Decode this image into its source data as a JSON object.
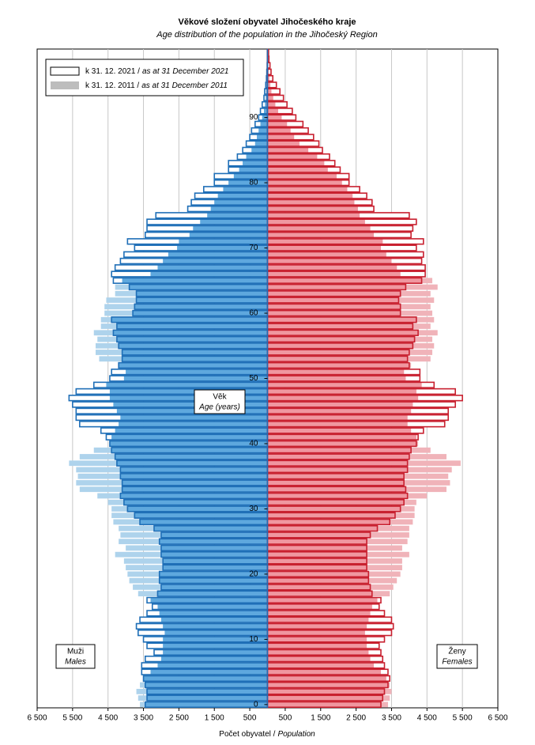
{
  "chart_data": {
    "type": "pyramid",
    "title": "Věkové složení obyvatel Jihočeského kraje",
    "subtitle": "Age distribution of the population in the Jihočeský Region",
    "x_label": "Počet obyvatel /",
    "x_label_en": "Population",
    "y_label": "Věk",
    "y_label_en": "Age (years)",
    "left_label": "Muži",
    "left_label_en": "Males",
    "right_label": "Ženy",
    "right_label_en": "Females",
    "xlim": [
      0,
      6500
    ],
    "xticks": [
      {
        "value": 500,
        "label": "500"
      },
      {
        "value": 1500,
        "label": "1 500"
      },
      {
        "value": 2500,
        "label": "2 500"
      },
      {
        "value": 3500,
        "label": "3 500"
      },
      {
        "value": 4500,
        "label": "4 500"
      },
      {
        "value": 5500,
        "label": "5 500"
      },
      {
        "value": 6500,
        "label": "6 500"
      }
    ],
    "ylim": [
      -0.5,
      100.5
    ],
    "yticks": [
      0,
      10,
      20,
      30,
      40,
      50,
      60,
      70,
      80,
      90
    ],
    "grid": true,
    "legend": "upper left",
    "male_overlap_color": "#5ea8de",
    "female_overlap_color": "#f097a0",
    "y": [
      0,
      1,
      2,
      3,
      4,
      5,
      6,
      7,
      8,
      9,
      10,
      11,
      12,
      13,
      14,
      15,
      16,
      17,
      18,
      19,
      20,
      21,
      22,
      23,
      24,
      25,
      26,
      27,
      28,
      29,
      30,
      31,
      32,
      33,
      34,
      35,
      36,
      37,
      38,
      39,
      40,
      41,
      42,
      43,
      44,
      45,
      46,
      47,
      48,
      49,
      50,
      51,
      52,
      53,
      54,
      55,
      56,
      57,
      58,
      59,
      60,
      61,
      62,
      63,
      64,
      65,
      66,
      67,
      68,
      69,
      70,
      71,
      72,
      73,
      74,
      75,
      76,
      77,
      78,
      79,
      80,
      81,
      82,
      83,
      84,
      85,
      86,
      87,
      88,
      89,
      90,
      91,
      92,
      93,
      94,
      95,
      96,
      97,
      98,
      99,
      100
    ],
    "series": [
      {
        "name": "k 31. 12. 2021 /",
        "name_en": "as at 31 December 2021",
        "style": "outline",
        "male_color": "#1f6fb7",
        "female_color": "#c8202f",
        "males": [
          3450,
          3400,
          3400,
          3450,
          3500,
          3550,
          3550,
          3450,
          3200,
          3400,
          3500,
          3650,
          3700,
          3600,
          3400,
          3250,
          3400,
          3100,
          3000,
          3050,
          3050,
          2950,
          2950,
          3000,
          3000,
          3050,
          3000,
          3200,
          3600,
          3750,
          3950,
          4050,
          4150,
          4100,
          4100,
          4150,
          4150,
          4250,
          4300,
          4400,
          4450,
          4550,
          4700,
          5300,
          5400,
          5400,
          5500,
          5600,
          5400,
          4900,
          4450,
          4400,
          4200,
          4100,
          4100,
          4200,
          4250,
          4350,
          4250,
          4400,
          3800,
          3750,
          3700,
          3700,
          3900,
          4350,
          4400,
          4300,
          4150,
          4050,
          3750,
          3950,
          3450,
          3400,
          3400,
          3150,
          2250,
          2150,
          2050,
          1800,
          1500,
          1500,
          1100,
          1100,
          850,
          700,
          600,
          500,
          450,
          350,
          250,
          200,
          150,
          100,
          80,
          50,
          30,
          20,
          10,
          5,
          5
        ],
        "females": [
          3200,
          3250,
          3300,
          3400,
          3450,
          3400,
          3300,
          3250,
          3200,
          3150,
          3300,
          3500,
          3550,
          3500,
          3300,
          3150,
          3200,
          2950,
          2900,
          2850,
          2850,
          2800,
          2800,
          2800,
          2800,
          2800,
          2900,
          3100,
          3450,
          3600,
          3750,
          3850,
          3950,
          3900,
          3850,
          3850,
          3950,
          3950,
          4000,
          4050,
          4200,
          4250,
          4400,
          5000,
          5100,
          5100,
          5300,
          5500,
          5300,
          4700,
          4300,
          4300,
          4000,
          3950,
          4000,
          4100,
          4150,
          4250,
          4100,
          4200,
          3750,
          3750,
          3700,
          3750,
          3900,
          4350,
          4450,
          4450,
          4350,
          4400,
          4200,
          4400,
          4050,
          4100,
          4200,
          4000,
          3000,
          2950,
          2800,
          2600,
          2300,
          2300,
          2050,
          1900,
          1750,
          1550,
          1450,
          1300,
          1150,
          1000,
          800,
          700,
          550,
          450,
          350,
          250,
          150,
          100,
          70,
          40,
          30
        ]
      },
      {
        "name": "k 31. 12. 2011 /",
        "name_en": "as at 31 December 2011",
        "style": "filled",
        "male_color": "#aed3ec",
        "female_color": "#f0b3b9",
        "males": [
          3600,
          3650,
          3700,
          3600,
          3500,
          3300,
          3100,
          3000,
          2950,
          2950,
          2950,
          2900,
          2950,
          3000,
          3050,
          3100,
          3300,
          3650,
          3800,
          3900,
          3950,
          4000,
          4050,
          4300,
          4000,
          4200,
          4150,
          4200,
          4350,
          4400,
          4400,
          4500,
          4800,
          5300,
          5400,
          5350,
          5400,
          5600,
          5300,
          4900,
          4450,
          4400,
          4300,
          4200,
          4150,
          4250,
          4350,
          4450,
          4450,
          4550,
          4050,
          4000,
          4200,
          4750,
          4850,
          4850,
          4800,
          4900,
          4700,
          4700,
          4600,
          4600,
          4550,
          4300,
          4300,
          4100,
          3300,
          3100,
          2950,
          2800,
          2550,
          2500,
          2200,
          2100,
          1900,
          1700,
          1600,
          1500,
          1400,
          1250,
          1100,
          950,
          800,
          700,
          600,
          450,
          350,
          300,
          250,
          200,
          150,
          100,
          70,
          50,
          40,
          30,
          20,
          10,
          5,
          5,
          5
        ],
        "females": [
          3400,
          3450,
          3500,
          3450,
          3350,
          3200,
          3000,
          2900,
          2850,
          2800,
          2800,
          2750,
          2800,
          2850,
          2900,
          2950,
          3100,
          3450,
          3550,
          3650,
          3750,
          3800,
          3800,
          4000,
          3800,
          3950,
          4000,
          4000,
          4100,
          4150,
          4150,
          4200,
          4500,
          5050,
          5150,
          5100,
          5200,
          5450,
          5050,
          4600,
          4250,
          4200,
          4050,
          3950,
          3950,
          4050,
          4100,
          4250,
          4200,
          4350,
          3900,
          3850,
          4050,
          4600,
          4650,
          4700,
          4650,
          4800,
          4600,
          4700,
          4650,
          4600,
          4700,
          4600,
          4800,
          4650,
          3750,
          3650,
          3500,
          3350,
          3200,
          3250,
          3000,
          2900,
          2750,
          2600,
          2550,
          2450,
          2400,
          2250,
          2100,
          1950,
          1700,
          1600,
          1400,
          1150,
          900,
          750,
          650,
          550,
          400,
          300,
          220,
          160,
          110,
          80,
          50,
          30,
          20,
          10,
          10
        ]
      }
    ]
  }
}
